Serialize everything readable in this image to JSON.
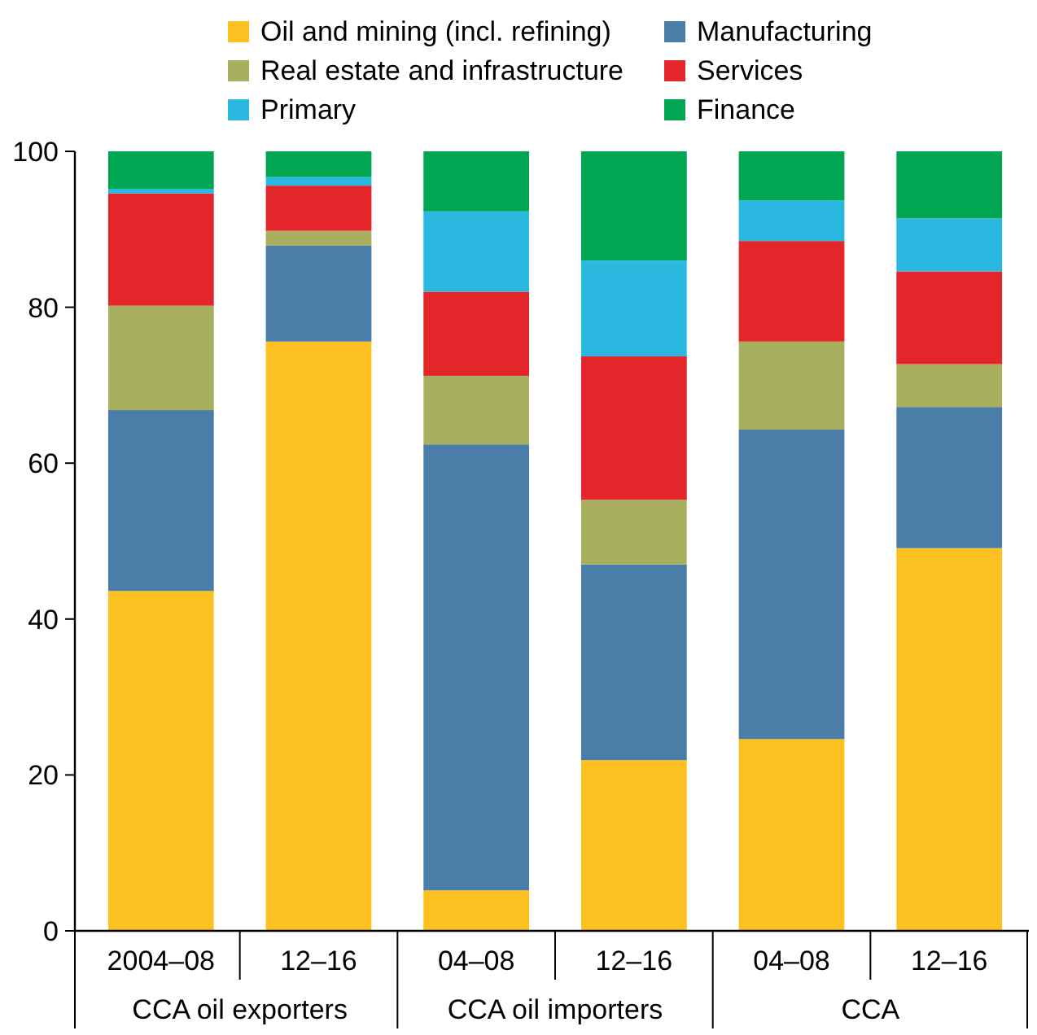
{
  "chart_data": {
    "type": "bar",
    "stacked": true,
    "categories": [
      "2004–08",
      "12–16",
      "04–08",
      "12–16",
      "04–08",
      "12–16"
    ],
    "series": [
      {
        "name": "Oil and mining (incl. refining)",
        "color": "#fcc020",
        "values": [
          43.6,
          75.6,
          5.2,
          21.9,
          24.6,
          49.1
        ]
      },
      {
        "name": "Manufacturing",
        "color": "#4a7ea8",
        "values": [
          23.2,
          12.3,
          57.2,
          25.1,
          39.7,
          18.1
        ]
      },
      {
        "name": "Real estate and infrastructure",
        "color": "#a8b060",
        "values": [
          13.4,
          1.9,
          8.8,
          8.3,
          11.3,
          5.5
        ]
      },
      {
        "name": "Services",
        "color": "#e3262a",
        "values": [
          14.4,
          5.8,
          10.8,
          18.4,
          12.9,
          11.9
        ]
      },
      {
        "name": "Primary",
        "color": "#2ab8e0",
        "values": [
          0.6,
          1.1,
          10.3,
          12.3,
          5.2,
          6.8
        ]
      },
      {
        "name": "Finance",
        "color": "#00a651",
        "values": [
          4.8,
          3.3,
          7.7,
          14.0,
          6.3,
          8.6
        ]
      }
    ],
    "annotations": [
      "CCA oil exporters",
      "CCA oil importers",
      "CCA"
    ],
    "ylim": [
      0,
      100
    ],
    "yticks": [
      0,
      20,
      40,
      60,
      80,
      100
    ],
    "legend": "top",
    "grid": false
  }
}
